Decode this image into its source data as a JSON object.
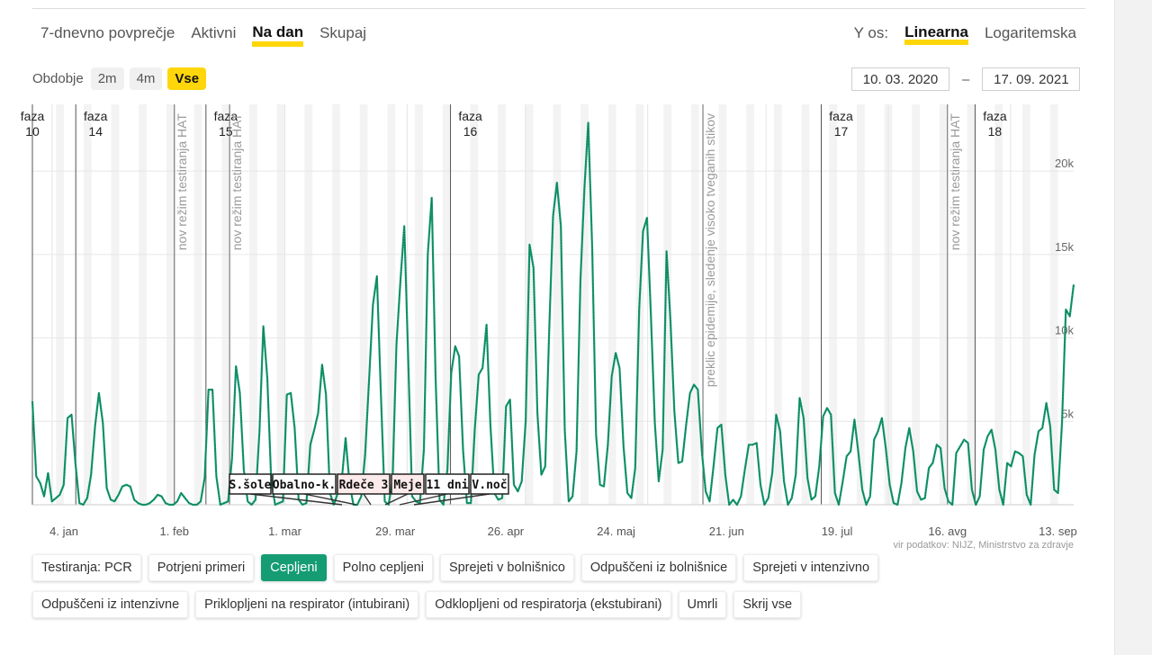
{
  "tabs": [
    "7-dnevno povprečje",
    "Aktivni",
    "Na dan",
    "Skupaj"
  ],
  "active_tab": "Na dan",
  "yaxis": {
    "label": "Y os:",
    "options": [
      "Linearna",
      "Logaritemska"
    ],
    "active": "Linearna"
  },
  "period": {
    "label": "Obdobje",
    "options": [
      "2m",
      "4m",
      "Vse"
    ],
    "active": "Vse"
  },
  "date_from": "10. 03. 2020",
  "date_dash": "–",
  "date_to": "17. 09. 2021",
  "source": "vir podatkov: NIJZ, Ministrstvo za zdravje",
  "filter_buttons": [
    "Testiranja: PCR",
    "Potrjeni primeri",
    "Cepljeni",
    "Polno cepljeni",
    "Sprejeti v bolnišnico",
    "Odpuščeni iz bolnišnice",
    "Sprejeti v intenzivno",
    "Odpuščeni iz intenzivne",
    "Priklopljeni na respirator (intubirani)",
    "Odklopljeni od respiratorja (ekstubirani)",
    "Umrli",
    "Skrij vse"
  ],
  "active_filter": "Cepljeni",
  "colors": {
    "series": "#159c72",
    "accent": "#ffd60a"
  },
  "chart_data": {
    "type": "line",
    "title": "",
    "xlabel": "",
    "ylabel": "",
    "x_range": [
      "2020-12-27",
      "2021-09-17"
    ],
    "ylim": [
      0,
      24000
    ],
    "x_ticks": [
      {
        "label": "4. jan",
        "date": "2021-01-04"
      },
      {
        "label": "1. feb",
        "date": "2021-02-01"
      },
      {
        "label": "1. mar",
        "date": "2021-03-01"
      },
      {
        "label": "29. mar",
        "date": "2021-03-29"
      },
      {
        "label": "26. apr",
        "date": "2021-04-26"
      },
      {
        "label": "24. maj",
        "date": "2021-05-24"
      },
      {
        "label": "21. jun",
        "date": "2021-06-21"
      },
      {
        "label": "19. jul",
        "date": "2021-07-19"
      },
      {
        "label": "16. avg",
        "date": "2021-08-16"
      },
      {
        "label": "13. sep",
        "date": "2021-09-13"
      }
    ],
    "y_ticks": [
      {
        "label": "5k",
        "value": 5000
      },
      {
        "label": "10k",
        "value": 10000
      },
      {
        "label": "15k",
        "value": 15000
      },
      {
        "label": "20k",
        "value": 20000
      }
    ],
    "phases": [
      {
        "label": "faza",
        "num": "10",
        "date": "2020-12-27"
      },
      {
        "label": "faza",
        "num": "14",
        "date": "2021-01-07"
      },
      {
        "label": "faza",
        "num": "15",
        "date": "2021-02-09"
      },
      {
        "label": "faza",
        "num": "16",
        "date": "2021-04-12"
      },
      {
        "label": "faza",
        "num": "17",
        "date": "2021-07-15"
      },
      {
        "label": "faza",
        "num": "18",
        "date": "2021-08-23"
      }
    ],
    "vertical_markers": [
      {
        "label": "nov režim testiranja HAT",
        "date": "2021-02-01"
      },
      {
        "label": "nov režim testiranja HAT",
        "date": "2021-02-15"
      },
      {
        "label": "preklic epidemije, sledenje visoko tveganih stikov",
        "date": "2021-06-15"
      },
      {
        "label": "nov režim testiranja HAT",
        "date": "2021-08-16"
      }
    ],
    "event_labels": [
      "S.šole",
      "Obalno-k.",
      "Rdeče 3",
      "Meje",
      "11 dni",
      "V.noč"
    ],
    "series": [
      {
        "values": [
          6200,
          1700,
          1300,
          500,
          1900,
          200,
          400,
          600,
          1200,
          5200,
          5400,
          2500,
          100,
          0,
          400,
          1800,
          4700,
          6700,
          4900,
          1000,
          300,
          200,
          600,
          1100,
          1200,
          1100,
          300,
          100,
          0,
          0,
          100,
          300,
          600,
          500,
          100,
          0,
          0,
          200,
          700,
          400,
          100,
          0,
          0,
          200,
          1600,
          6900,
          6900,
          1700,
          0,
          100,
          200,
          2800,
          8300,
          6700,
          2100,
          200,
          0,
          300,
          4400,
          10700,
          7600,
          1500,
          0,
          100,
          200,
          6600,
          6700,
          4600,
          300,
          0,
          100,
          3600,
          4500,
          5500,
          8400,
          6600,
          700,
          0,
          700,
          1400,
          4000,
          1300,
          0,
          0,
          500,
          3000,
          7500,
          12000,
          13700,
          6800,
          200,
          0,
          1500,
          9600,
          13400,
          16700,
          8700,
          500,
          200,
          100,
          3300,
          15000,
          18400,
          7600,
          300,
          0,
          2100,
          7900,
          9500,
          8900,
          3300,
          100,
          100,
          4500,
          7800,
          8200,
          10800,
          4800,
          700,
          300,
          400,
          5900,
          6300,
          1200,
          800,
          1400,
          5000,
          15600,
          14200,
          5500,
          1800,
          2300,
          10400,
          17300,
          19300,
          16700,
          4500,
          200,
          500,
          3200,
          13400,
          18900,
          22900,
          15400,
          4200,
          1200,
          1100,
          3600,
          7700,
          9100,
          8200,
          3500,
          700,
          400,
          2200,
          11700,
          16400,
          17200,
          11400,
          4900,
          1400,
          3300,
          15200,
          11000,
          5600,
          2500,
          2600,
          4800,
          6700,
          7200,
          6900,
          3200,
          800,
          200,
          2300,
          4600,
          4800,
          1800,
          0,
          300,
          0,
          500,
          2100,
          3600,
          3600,
          3700,
          1200,
          0,
          400,
          1900,
          5400,
          4400,
          1400,
          0,
          400,
          1800,
          6400,
          5200,
          1600,
          300,
          500,
          2300,
          5300,
          5800,
          5400,
          700,
          0,
          1400,
          2900,
          3200,
          5100,
          3100,
          900,
          0,
          500,
          3900,
          4400,
          5200,
          3400,
          1200,
          100,
          0,
          1300,
          3400,
          4600,
          3200,
          800,
          300,
          400,
          2200,
          2500,
          3600,
          3400,
          1000,
          200,
          0,
          3100,
          3500,
          3900,
          3700,
          900,
          0,
          500,
          3300,
          4100,
          4500,
          3300,
          900,
          0,
          2500,
          2300,
          3200,
          3100,
          2900,
          600,
          0,
          3000,
          4400,
          4600,
          6100,
          4700,
          900,
          700,
          4900,
          11700,
          11300,
          13200
        ]
      }
    ]
  }
}
